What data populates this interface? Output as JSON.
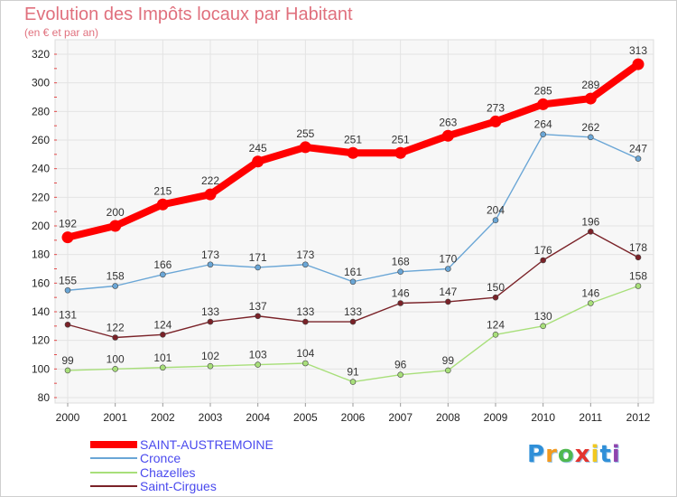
{
  "chart_data": {
    "type": "line",
    "title": "Evolution des Impôts locaux par Habitant",
    "subtitle": "(en € et par an)",
    "x": [
      "2000",
      "2001",
      "2002",
      "2003",
      "2004",
      "2005",
      "2006",
      "2007",
      "2008",
      "2009",
      "2010",
      "2011",
      "2012"
    ],
    "ylim": [
      80,
      320
    ],
    "yticks": [
      80,
      100,
      120,
      140,
      160,
      180,
      200,
      220,
      240,
      260,
      280,
      300,
      320
    ],
    "grid": true,
    "legend_position": "bottom-left",
    "series": [
      {
        "name": "SAINT-AUSTREMOINE",
        "color": "#ff0000",
        "values": [
          192,
          200,
          215,
          222,
          245,
          255,
          251,
          251,
          263,
          273,
          285,
          289,
          313
        ]
      },
      {
        "name": "Cronce",
        "color": "#6aa6d6",
        "values": [
          155,
          158,
          166,
          173,
          171,
          173,
          161,
          168,
          170,
          204,
          264,
          262,
          247
        ]
      },
      {
        "name": "Chazelles",
        "color": "#a8df7a",
        "values": [
          99,
          100,
          101,
          102,
          103,
          104,
          91,
          96,
          99,
          124,
          130,
          146,
          158
        ]
      },
      {
        "name": "Saint-Cirgues",
        "color": "#7a2228",
        "values": [
          131,
          122,
          124,
          133,
          137,
          133,
          133,
          146,
          147,
          150,
          176,
          196,
          178
        ]
      }
    ]
  },
  "logo": {
    "letters": [
      "P",
      "r",
      "o",
      "x",
      "i",
      "t",
      "i"
    ],
    "colors": [
      "#2f8fd8",
      "#f29a1f",
      "#4fb84f",
      "#e3342f",
      "#f2c81f",
      "#2f8fd8",
      "#8e44ad"
    ]
  }
}
